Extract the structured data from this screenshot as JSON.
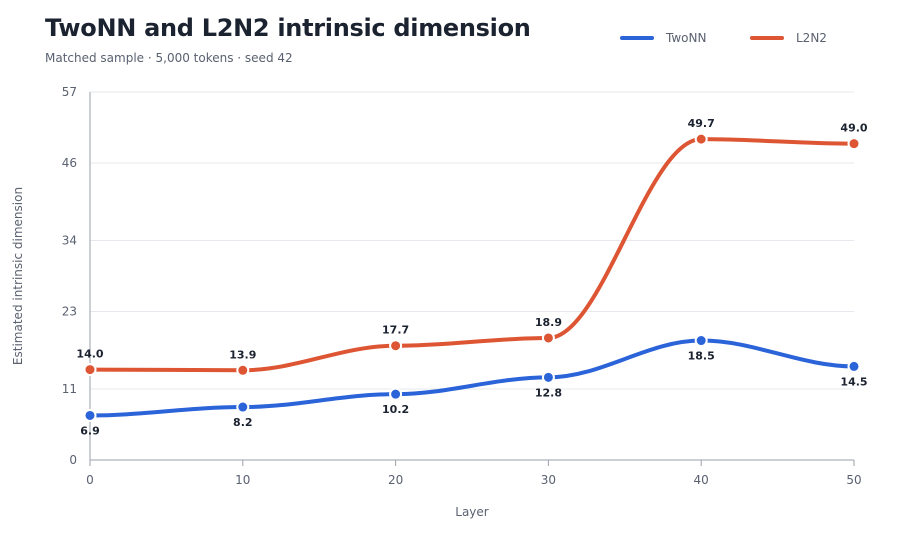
{
  "title": "TwoNN and L2N2 intrinsic dimension",
  "subtitle": "Matched sample · 5,000 tokens · seed 42",
  "colors": {
    "twonn": "#2b63d9",
    "l2n2": "#dd5533",
    "grid": "#e6e8ee",
    "axis": "#9aa0ab",
    "text": "#5a6170"
  },
  "chart_data": {
    "type": "line",
    "title": "TwoNN and L2N2 intrinsic dimension",
    "subtitle": "Matched sample · 5,000 tokens · seed 42",
    "xlabel": "Layer",
    "ylabel": "Estimated intrinsic dimension",
    "x": [
      0,
      10,
      20,
      30,
      40,
      50
    ],
    "xticks": [
      "0",
      "10",
      "20",
      "30",
      "40",
      "50"
    ],
    "yticks": [
      "0",
      "11",
      "23",
      "34",
      "46",
      "57"
    ],
    "ylim": [
      0,
      57
    ],
    "xlim": [
      0,
      50
    ],
    "grid": true,
    "legend_position": "top-right",
    "series": [
      {
        "name": "TwoNN",
        "values": [
          6.9,
          8.2,
          10.2,
          12.8,
          18.5,
          14.5
        ],
        "labels": [
          "6.9",
          "8.2",
          "10.2",
          "12.8",
          "18.5",
          "14.5"
        ],
        "label_side": "below"
      },
      {
        "name": "L2N2",
        "values": [
          14.0,
          13.9,
          17.7,
          18.9,
          49.7,
          49.0
        ],
        "labels": [
          "14.0",
          "13.9",
          "17.7",
          "18.9",
          "49.7",
          "49.0"
        ],
        "label_side": "above"
      }
    ]
  }
}
